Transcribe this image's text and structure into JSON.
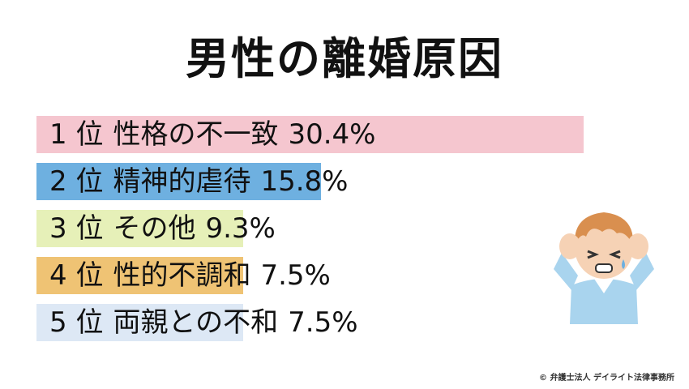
{
  "chart_data": {
    "type": "bar",
    "title": "男性の離婚原因",
    "xlabel": "",
    "ylabel": "",
    "categories": [
      "性格の不一致",
      "精神的虐待",
      "その他",
      "性的不調和",
      "両親との不和"
    ],
    "ranks": [
      "1",
      "2",
      "3",
      "4",
      "5"
    ],
    "rank_suffix": "位",
    "values": [
      30.4,
      15.8,
      9.3,
      7.5,
      7.5
    ],
    "value_labels": [
      "30.4%",
      "15.8%",
      "9.3%",
      "7.5%",
      "7.5%"
    ],
    "colors": [
      "#f5c6cf",
      "#6eb0e0",
      "#e6f0b8",
      "#efc374",
      "#dde8f5"
    ],
    "xlim": [
      0,
      30.4
    ],
    "grid": false,
    "legend": "none"
  },
  "copyright": "© 弁護士法人 デイライト法律事務所",
  "illustration": "worried-man-holding-head"
}
